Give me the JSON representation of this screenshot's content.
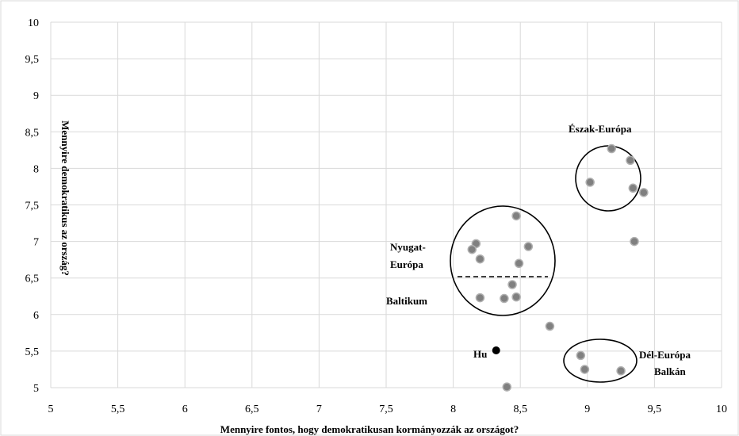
{
  "chart_data": {
    "type": "scatter",
    "xlabel": "Mennyire fontos, hogy demokratikusan kormányozzák az országot?",
    "ylabel": "Mennyire demokratikus az ország?",
    "xlim": [
      5,
      10
    ],
    "ylim": [
      5,
      10
    ],
    "x_ticks": [
      "5",
      "5,5",
      "6",
      "6,5",
      "7",
      "7,5",
      "8",
      "8,5",
      "9",
      "9,5",
      "10"
    ],
    "y_ticks": [
      "5",
      "5,5",
      "6",
      "6,5",
      "7",
      "7,5",
      "8",
      "8,5",
      "9",
      "9,5",
      "10"
    ],
    "grid": true,
    "points": [
      {
        "x": 9.18,
        "y": 8.27
      },
      {
        "x": 9.32,
        "y": 8.11
      },
      {
        "x": 9.02,
        "y": 7.81
      },
      {
        "x": 9.34,
        "y": 7.73
      },
      {
        "x": 9.42,
        "y": 7.67
      },
      {
        "x": 9.35,
        "y": 7.0
      },
      {
        "x": 8.47,
        "y": 7.35
      },
      {
        "x": 8.17,
        "y": 6.97
      },
      {
        "x": 8.14,
        "y": 6.89
      },
      {
        "x": 8.56,
        "y": 6.93
      },
      {
        "x": 8.2,
        "y": 6.76
      },
      {
        "x": 8.49,
        "y": 6.7
      },
      {
        "x": 8.44,
        "y": 6.41
      },
      {
        "x": 8.2,
        "y": 6.23
      },
      {
        "x": 8.38,
        "y": 6.22
      },
      {
        "x": 8.47,
        "y": 6.24
      },
      {
        "x": 8.72,
        "y": 5.84
      },
      {
        "x": 8.95,
        "y": 5.44
      },
      {
        "x": 8.98,
        "y": 5.25
      },
      {
        "x": 9.25,
        "y": 5.23
      },
      {
        "x": 8.4,
        "y": 5.01
      },
      {
        "x": 8.32,
        "y": 5.51,
        "label": "Hu",
        "highlight": true
      }
    ],
    "annotations": [
      {
        "text": "Észak-Európa"
      },
      {
        "text": "Nyugat-"
      },
      {
        "text": "Európa"
      },
      {
        "text": "Baltikum"
      },
      {
        "text": "Dél-Európa"
      },
      {
        "text": "Balkán"
      }
    ],
    "colors": {
      "point": "#808080",
      "highlight_point": "#000000",
      "grid": "#d9d9d9",
      "outline": "#000000"
    }
  }
}
